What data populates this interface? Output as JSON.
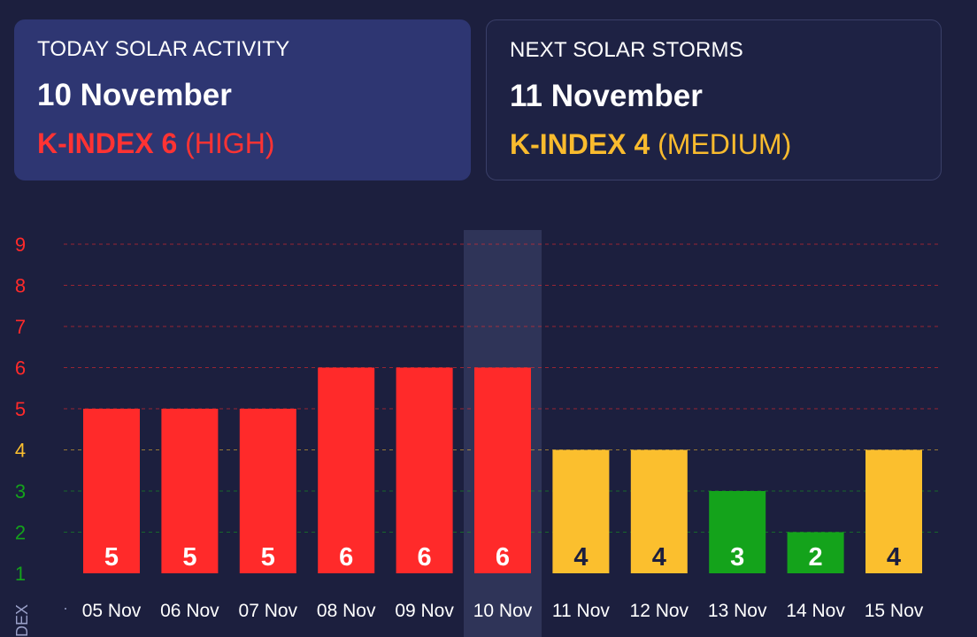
{
  "today": {
    "label": "TODAY SOLAR ACTIVITY",
    "date": "10 November",
    "k_strong": "K-INDEX 6",
    "k_level": "(HIGH)",
    "color": "#ff3333"
  },
  "next": {
    "label": "NEXT SOLAR STORMS",
    "date": "11 November",
    "k_strong": "K-INDEX 4",
    "k_level": "(MEDIUM)",
    "color": "#f9bb2e"
  },
  "colors": {
    "high": "#ff2a2a",
    "medium": "#fbbf2e",
    "low": "#14a31b",
    "value_text_on_high": "#ffffff",
    "value_text_on_medium": "#1c1f3e",
    "value_text_on_low": "#ffffff",
    "highlight": "#2f3458"
  },
  "chart_data": {
    "type": "bar",
    "title": "",
    "xlabel": "",
    "ylabel": "DEX",
    "ylim": [
      1,
      9
    ],
    "yticks": [
      1,
      2,
      3,
      4,
      5,
      6,
      7,
      8,
      9
    ],
    "categories": [
      "05 Nov",
      "06 Nov",
      "07 Nov",
      "08 Nov",
      "09 Nov",
      "10 Nov",
      "11 Nov",
      "12 Nov",
      "13 Nov",
      "14 Nov",
      "15 Nov"
    ],
    "values": [
      5,
      5,
      5,
      6,
      6,
      6,
      4,
      4,
      3,
      2,
      4
    ],
    "highlighted_category": "10 Nov",
    "grid": true
  }
}
